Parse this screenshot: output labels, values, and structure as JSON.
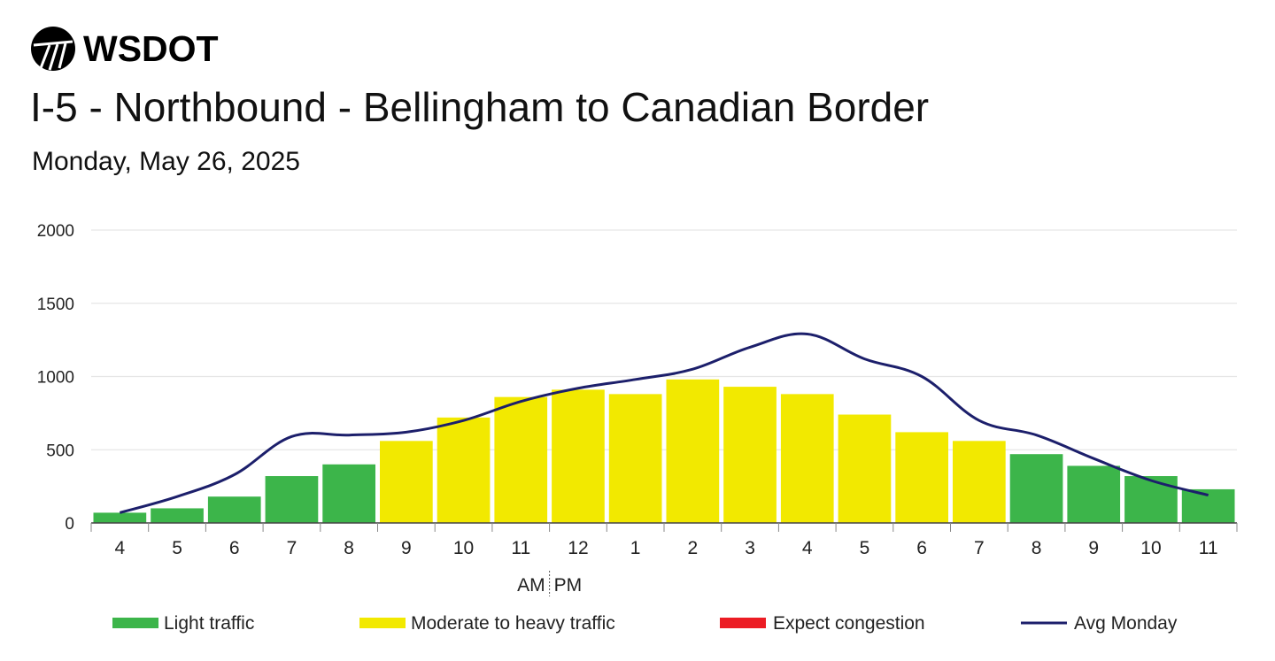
{
  "header": {
    "logo_text": "WSDOT",
    "title": "I-5 - Northbound - Bellingham to Canadian Border",
    "subtitle": "Monday, May 26, 2025"
  },
  "colors": {
    "light": "#3cb54a",
    "moderate": "#f2e900",
    "congestion": "#ec1c24",
    "avg_line": "#1c1f6b",
    "grid": "#e6e6e6",
    "axis": "#444444"
  },
  "chart_data": {
    "type": "bar",
    "categories": [
      "4",
      "5",
      "6",
      "7",
      "8",
      "9",
      "10",
      "11",
      "12",
      "1",
      "2",
      "3",
      "4",
      "5",
      "6",
      "7",
      "8",
      "9",
      "10",
      "11"
    ],
    "values": [
      70,
      100,
      180,
      320,
      400,
      560,
      720,
      860,
      910,
      880,
      980,
      930,
      880,
      740,
      620,
      560,
      470,
      390,
      320,
      230
    ],
    "traffic_level": [
      "light",
      "light",
      "light",
      "light",
      "light",
      "moderate",
      "moderate",
      "moderate",
      "moderate",
      "moderate",
      "moderate",
      "moderate",
      "moderate",
      "moderate",
      "moderate",
      "moderate",
      "light",
      "light",
      "light",
      "light"
    ],
    "series": [
      {
        "name": "Avg Monday",
        "type": "line",
        "values": [
          70,
          180,
          330,
          590,
          600,
          620,
          700,
          830,
          920,
          980,
          1050,
          1200,
          1290,
          1120,
          1000,
          700,
          600,
          440,
          290,
          190
        ]
      }
    ],
    "ylim": [
      0,
      2000
    ],
    "yticks": [
      "0",
      "500",
      "1000",
      "1500",
      "2000"
    ],
    "ytick_values": [
      0,
      500,
      1000,
      1500,
      2000
    ],
    "am_pm_label": {
      "am": "AM",
      "pm": "PM"
    },
    "grid": true,
    "legend": [
      {
        "key": "light",
        "label": "Light traffic",
        "kind": "bar"
      },
      {
        "key": "moderate",
        "label": "Moderate to heavy traffic",
        "kind": "bar"
      },
      {
        "key": "congestion",
        "label": "Expect congestion",
        "kind": "bar"
      },
      {
        "key": "avg_line",
        "label": "Avg Monday",
        "kind": "line"
      }
    ],
    "legend_position": "bottom"
  }
}
